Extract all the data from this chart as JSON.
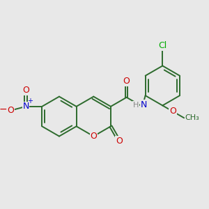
{
  "bg_color": "#e8e8e8",
  "bond_color": "#2d6b2d",
  "atom_colors": {
    "O": "#cc0000",
    "N": "#0000cc",
    "Cl": "#00aa00",
    "H": "#888888",
    "C": "#2d6b2d"
  },
  "font_size": 9,
  "bond_width": 1.4
}
